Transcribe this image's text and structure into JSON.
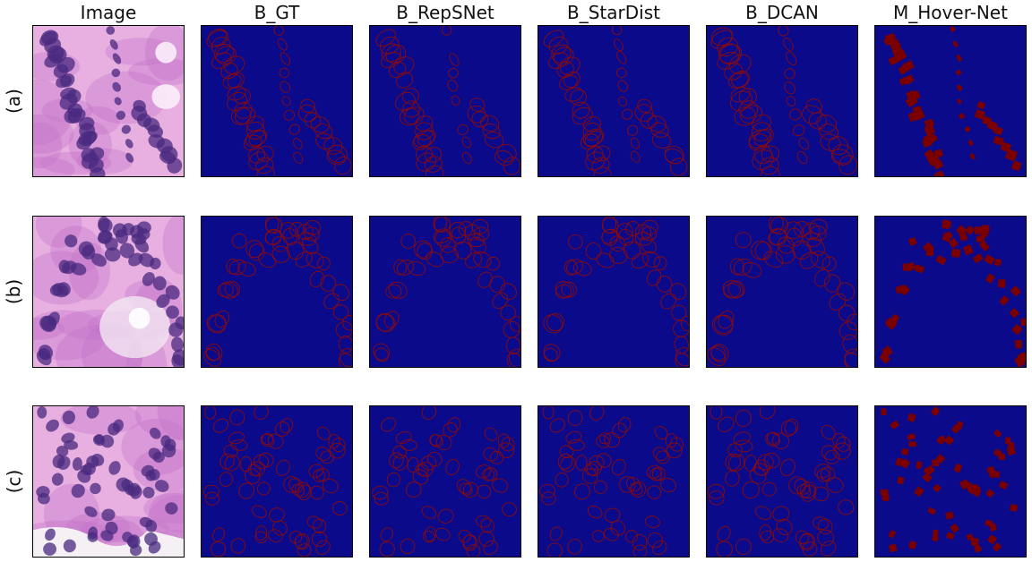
{
  "columns": [
    "Image",
    "B_GT",
    "B_RepSNet",
    "B_StarDist",
    "B_DCAN",
    "M_Hover-Net"
  ],
  "rows": [
    "(a)",
    "(b)",
    "(c)"
  ],
  "colors": {
    "background": "#0a0a8a",
    "contour": "#8b0a0a",
    "mask": "#7a0000",
    "tissue_light": "#e8b0e0",
    "tissue_mid": "#c070c8",
    "nucleus": "#4a2a80",
    "lumen": "#f3e6f3"
  }
}
